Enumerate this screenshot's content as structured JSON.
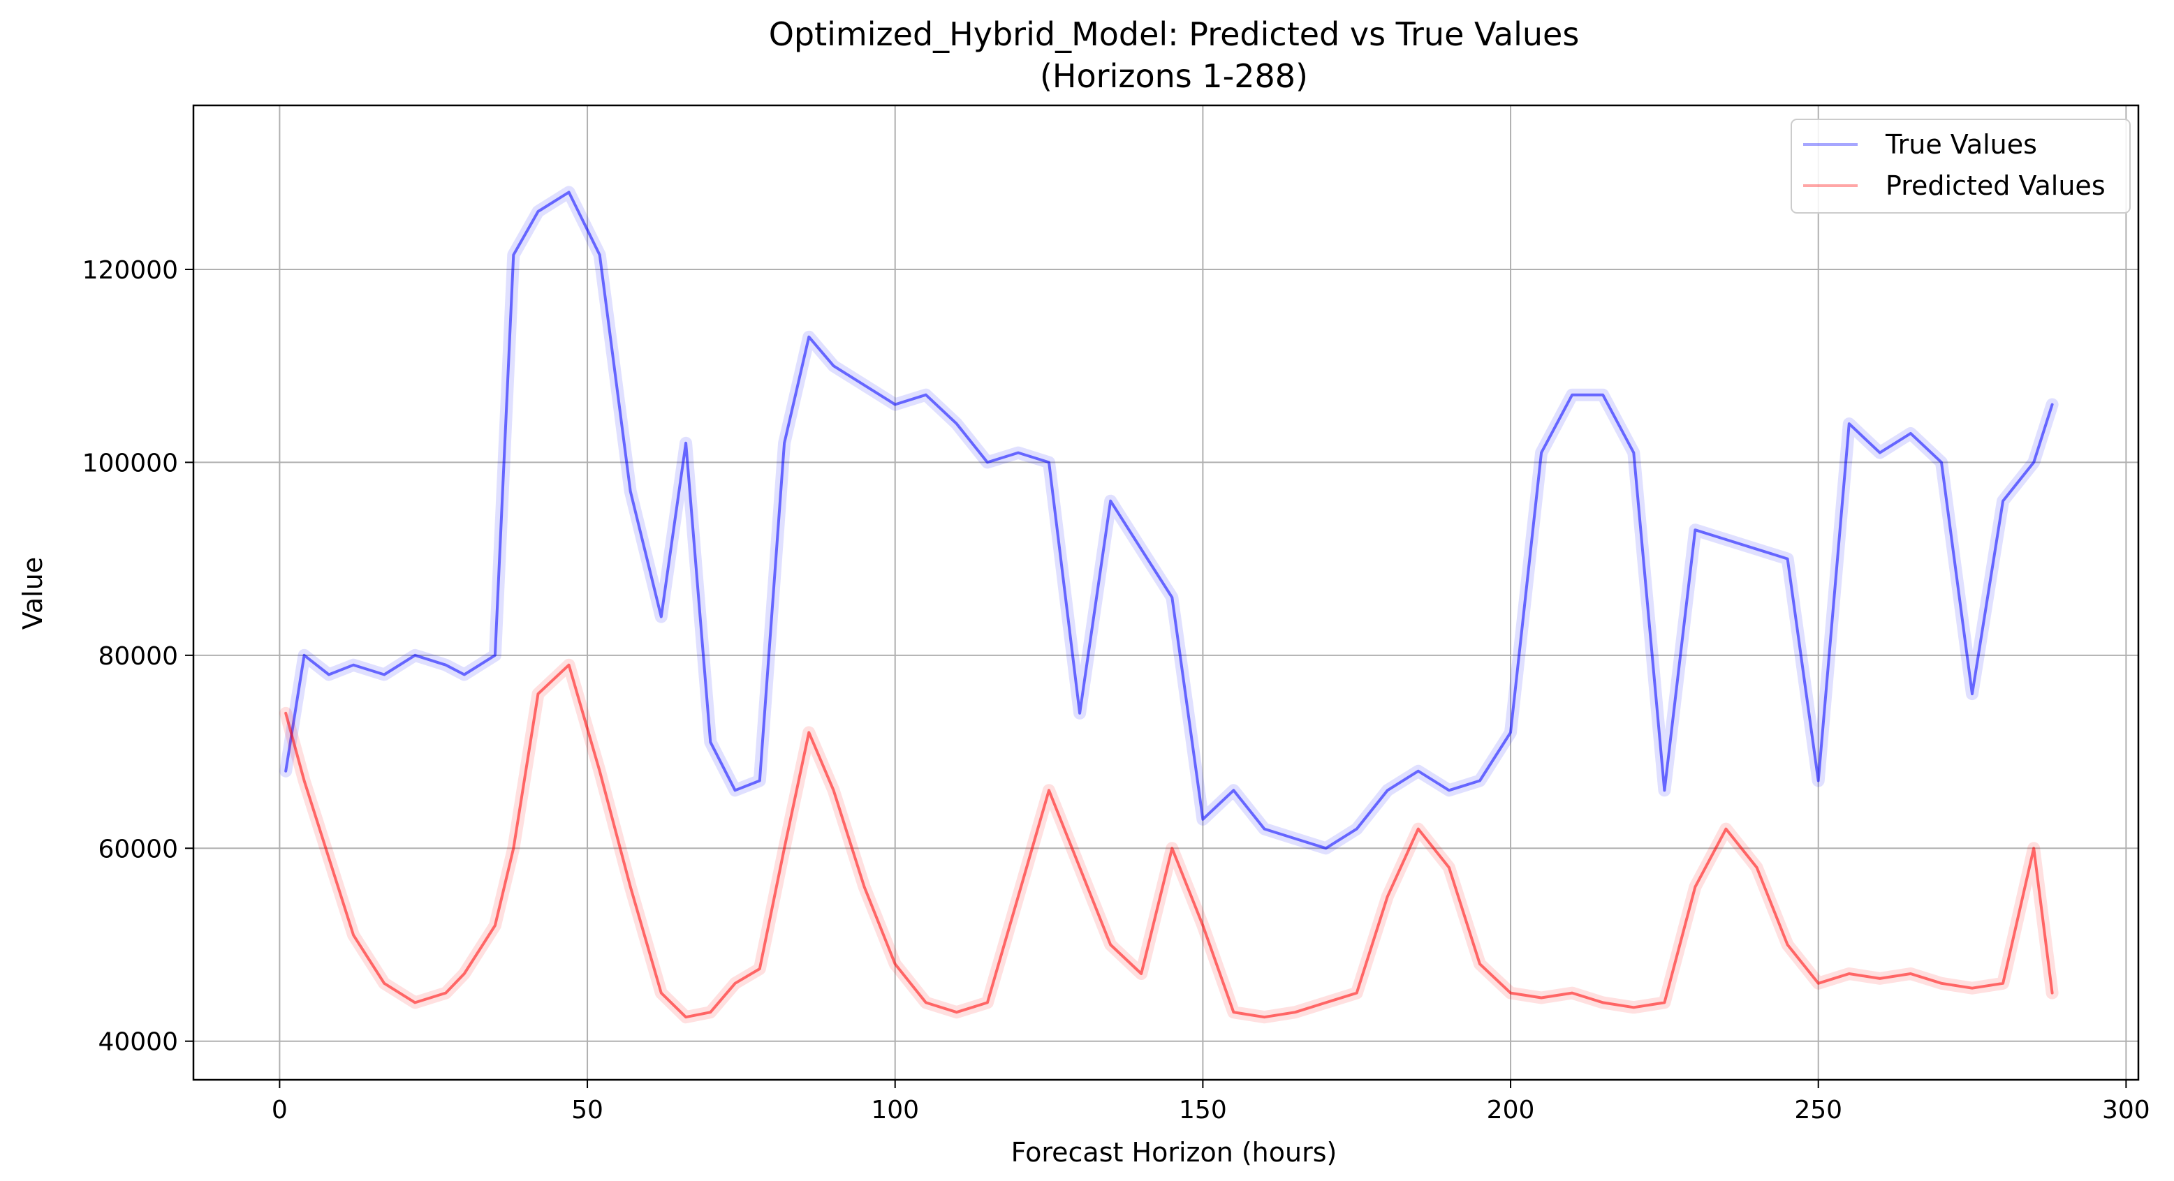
{
  "chart_data": {
    "type": "line",
    "title": "Optimized_Hybrid_Model: Predicted vs True Values",
    "subtitle": "(Horizons 1-288)",
    "xlabel": "Forecast Horizon (hours)",
    "ylabel": "Value",
    "xlim": [
      -14,
      302
    ],
    "ylim": [
      36000,
      137000
    ],
    "xticks": [
      0,
      50,
      100,
      150,
      200,
      250,
      300
    ],
    "yticks": [
      40000,
      60000,
      80000,
      100000,
      120000
    ],
    "grid": true,
    "legend": {
      "position": "top-right",
      "entries": [
        "True Values",
        "Predicted Values"
      ]
    },
    "colors": {
      "true": "#0000ff",
      "predicted": "#ff0000",
      "grid": "#b0b0b0"
    },
    "series": [
      {
        "name": "True Values",
        "x": [
          1,
          4,
          8,
          12,
          17,
          22,
          27,
          30,
          35,
          38,
          42,
          47,
          52,
          57,
          62,
          66,
          70,
          74,
          78,
          82,
          86,
          90,
          95,
          100,
          105,
          110,
          115,
          120,
          125,
          130,
          135,
          140,
          145,
          150,
          155,
          160,
          165,
          170,
          175,
          180,
          185,
          190,
          195,
          200,
          205,
          210,
          215,
          220,
          225,
          230,
          235,
          240,
          245,
          250,
          255,
          260,
          265,
          270,
          275,
          280,
          285,
          288
        ],
        "values": [
          68000,
          80000,
          78000,
          79000,
          78000,
          80000,
          79000,
          78000,
          80000,
          121500,
          126000,
          128000,
          121500,
          97000,
          84000,
          102000,
          71000,
          66000,
          67000,
          102000,
          113000,
          110000,
          108000,
          106000,
          107000,
          104000,
          100000,
          101000,
          100000,
          74000,
          96000,
          91000,
          86000,
          63000,
          66000,
          62000,
          61000,
          60000,
          62000,
          66000,
          68000,
          66000,
          67000,
          72000,
          101000,
          107000,
          107000,
          101000,
          66000,
          93000,
          92000,
          91000,
          90000,
          67000,
          104000,
          101000,
          103000,
          100000,
          76000,
          96000,
          100000,
          106000
        ]
      },
      {
        "name": "Predicted Values",
        "x": [
          1,
          4,
          8,
          12,
          17,
          22,
          27,
          30,
          35,
          38,
          42,
          47,
          52,
          57,
          62,
          66,
          70,
          74,
          78,
          82,
          86,
          90,
          95,
          100,
          105,
          110,
          115,
          120,
          125,
          130,
          135,
          140,
          145,
          150,
          155,
          160,
          165,
          170,
          175,
          180,
          185,
          190,
          195,
          200,
          205,
          210,
          215,
          220,
          225,
          230,
          235,
          240,
          245,
          250,
          255,
          260,
          265,
          270,
          275,
          280,
          285,
          288
        ],
        "values": [
          74000,
          67000,
          59000,
          51000,
          46000,
          44000,
          45000,
          47000,
          52000,
          60000,
          76000,
          79000,
          68000,
          56000,
          45000,
          42500,
          43000,
          46000,
          47500,
          60000,
          72000,
          66000,
          56000,
          48000,
          44000,
          43000,
          44000,
          55000,
          66000,
          58000,
          50000,
          47000,
          60000,
          52000,
          43000,
          42500,
          43000,
          44000,
          45000,
          55000,
          62000,
          58000,
          48000,
          45000,
          44500,
          45000,
          44000,
          43500,
          44000,
          56000,
          62000,
          58000,
          50000,
          46000,
          47000,
          46500,
          47000,
          46000,
          45500,
          46000,
          60000,
          45000
        ]
      }
    ]
  }
}
